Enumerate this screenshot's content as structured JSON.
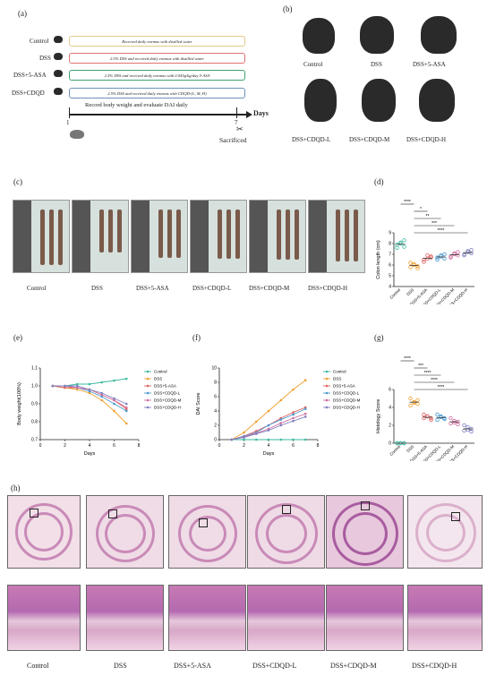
{
  "panels": {
    "a": "(a)",
    "b": "(b)",
    "c": "(c)",
    "d": "(d)",
    "e": "(e)",
    "f": "(f)",
    "g": "(g)",
    "h": "(h)"
  },
  "panel_a": {
    "groups": [
      "Control",
      "DSS",
      "DSS+5-ASA",
      "DSS+CDQD"
    ],
    "treatments": [
      "Received daily enemas with distilled water",
      "2.5% DSS and received daily enemas with distilled water",
      "2.5% DSS and received daily enemas with 0.045g/kg/day 5-ASA",
      "2.5% DSS and received daily enemas with CDQD-(L, M, H)"
    ],
    "timeline_label": "Record body weight and evaluate DAI daily",
    "day_start": "1",
    "day_end": "7",
    "days_label": "Days",
    "sacrificed": "Sacrificed"
  },
  "panel_b": {
    "groups": [
      "Control",
      "DSS",
      "DSS+5-ASA",
      "DSS+CDQD-L",
      "DSS+CDQD-M",
      "DSS+CDQD-H"
    ]
  },
  "panel_c": {
    "groups": [
      "Control",
      "DSS",
      "DSS+5-ASA",
      "DSS+CDQD-L",
      "DSS+CDQD-M",
      "DSS+CDQD-H"
    ]
  },
  "panel_h": {
    "groups": [
      "Control",
      "DSS",
      "DSS+5-ASA",
      "DSS+CDQD-L",
      "DSS+CDQD-M",
      "DSS+CDQD-H"
    ]
  },
  "chart_data": [
    {
      "id": "d",
      "type": "scatter",
      "ylabel": "Colon length (cm)",
      "ylim": [
        4,
        9
      ],
      "yticks": [
        "4",
        "5",
        "6",
        "7",
        "8",
        "9"
      ],
      "categories": [
        "Control",
        "DSS",
        "DSS+5-ASA",
        "DSS+CDQD-L",
        "DSS+CDQD-M",
        "DSS+CDQD-H"
      ],
      "colors": [
        "#3cb8a0",
        "#f0a030",
        "#e06060",
        "#4a9ad0",
        "#d070a0",
        "#8080c0"
      ],
      "points": [
        [
          7.6,
          8.0,
          8.3,
          7.9,
          8.1,
          7.7
        ],
        [
          5.8,
          6.1,
          5.9,
          6.2,
          6.0,
          5.7
        ],
        [
          6.3,
          6.6,
          6.8,
          6.5,
          6.9,
          6.7
        ],
        [
          6.5,
          6.9,
          7.0,
          6.7,
          6.8,
          6.6
        ],
        [
          6.7,
          7.0,
          7.2,
          6.8,
          7.1,
          6.9
        ],
        [
          6.9,
          7.2,
          7.4,
          7.0,
          7.3,
          7.1
        ]
      ],
      "significance": [
        "****",
        "*",
        "**",
        "***",
        "****"
      ]
    },
    {
      "id": "e",
      "type": "line",
      "xlabel": "Days",
      "ylabel": "Body weight(100%)",
      "x": [
        1,
        2,
        3,
        4,
        5,
        6,
        7
      ],
      "ylim": [
        0.7,
        1.1
      ],
      "yticks": [
        "0.7",
        "0.8",
        "0.9",
        "1.0",
        "1.1"
      ],
      "xticks": [
        "0",
        "2",
        "4",
        "6",
        "8"
      ],
      "legend_position": "right",
      "series": [
        {
          "name": "Control",
          "color": "#3cb8a0",
          "values": [
            1.0,
            1.0,
            1.01,
            1.01,
            1.02,
            1.03,
            1.04
          ]
        },
        {
          "name": "DSS",
          "color": "#f0a030",
          "values": [
            1.0,
            0.99,
            0.98,
            0.96,
            0.92,
            0.86,
            0.79
          ]
        },
        {
          "name": "DSS+5-ASA",
          "color": "#e06060",
          "values": [
            1.0,
            0.99,
            0.99,
            0.98,
            0.95,
            0.92,
            0.87
          ]
        },
        {
          "name": "DSS+CDQD-L",
          "color": "#4a9ad0",
          "values": [
            1.0,
            1.0,
            0.99,
            0.97,
            0.94,
            0.9,
            0.86
          ]
        },
        {
          "name": "DSS+CDQD-M",
          "color": "#d070a0",
          "values": [
            1.0,
            1.0,
            0.99,
            0.98,
            0.95,
            0.92,
            0.88
          ]
        },
        {
          "name": "DSS+CDQD-H",
          "color": "#8080c0",
          "values": [
            1.0,
            1.0,
            1.0,
            0.98,
            0.96,
            0.93,
            0.9
          ]
        }
      ]
    },
    {
      "id": "f",
      "type": "line",
      "xlabel": "Days",
      "ylabel": "DAI Score",
      "x": [
        1,
        2,
        3,
        4,
        5,
        6,
        7
      ],
      "ylim": [
        0,
        10
      ],
      "yticks": [
        "0",
        "2",
        "4",
        "6",
        "8",
        "10"
      ],
      "xticks": [
        "0",
        "2",
        "4",
        "6",
        "8"
      ],
      "legend_position": "right",
      "series": [
        {
          "name": "Control",
          "color": "#3cb8a0",
          "values": [
            0,
            0,
            0,
            0,
            0,
            0,
            0
          ]
        },
        {
          "name": "DSS",
          "color": "#f0a030",
          "values": [
            0,
            1.0,
            2.5,
            4.0,
            5.5,
            7.0,
            8.3
          ]
        },
        {
          "name": "DSS+5-ASA",
          "color": "#e06060",
          "values": [
            0,
            0.5,
            1.2,
            2.0,
            3.0,
            3.8,
            4.5
          ]
        },
        {
          "name": "DSS+CDQD-L",
          "color": "#4a9ad0",
          "values": [
            0,
            0.5,
            1.0,
            2.0,
            2.8,
            3.5,
            4.3
          ]
        },
        {
          "name": "DSS+CDQD-M",
          "color": "#d070a0",
          "values": [
            0,
            0.4,
            0.9,
            1.5,
            2.3,
            3.0,
            3.6
          ]
        },
        {
          "name": "DSS+CDQD-H",
          "color": "#8080c0",
          "values": [
            0,
            0.3,
            0.8,
            1.3,
            2.0,
            2.6,
            3.2
          ]
        }
      ]
    },
    {
      "id": "g",
      "type": "scatter",
      "ylabel": "Histology Score",
      "ylim": [
        0,
        6
      ],
      "yticks": [
        "0",
        "2",
        "4",
        "6"
      ],
      "categories": [
        "Control",
        "DSS",
        "DSS+5-ASA",
        "DSS+CDQD-L",
        "DSS+CDQD-M",
        "DSS+CDQD-H"
      ],
      "colors": [
        "#3cb8a0",
        "#f0a030",
        "#e06060",
        "#4a9ad0",
        "#d070a0",
        "#8080c0"
      ],
      "points": [
        [
          0,
          0,
          0,
          0,
          0,
          0
        ],
        [
          4.2,
          4.5,
          4.8,
          5.0,
          4.6,
          4.4
        ],
        [
          2.8,
          3.0,
          2.6,
          3.2,
          3.0,
          2.8
        ],
        [
          2.6,
          3.0,
          2.8,
          3.2,
          2.9,
          2.7
        ],
        [
          2.2,
          2.5,
          2.4,
          2.8,
          2.3,
          2.1
        ],
        [
          1.4,
          1.8,
          1.6,
          2.0,
          1.5,
          1.3
        ]
      ],
      "significance": [
        "****",
        "***",
        "****",
        "****",
        "****"
      ]
    }
  ]
}
